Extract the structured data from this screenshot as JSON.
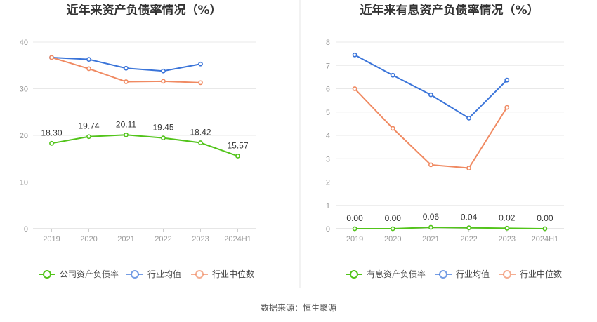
{
  "chart_data": [
    {
      "type": "line",
      "title": "近年来资产负债率情况（%）",
      "categories": [
        "2019",
        "2020",
        "2021",
        "2022",
        "2023",
        "2024H1"
      ],
      "ylim": [
        0,
        40
      ],
      "yticks": [
        "0",
        "10",
        "20",
        "30",
        "40"
      ],
      "grid": true,
      "legend_position": "bottom",
      "series": [
        {
          "name": "公司资产负债率",
          "color": "#52c41a",
          "values": [
            18.3,
            19.74,
            20.11,
            19.45,
            18.42,
            15.57
          ],
          "labels": [
            "18.30",
            "19.74",
            "20.11",
            "19.45",
            "18.42",
            "15.57"
          ]
        },
        {
          "name": "行业均值",
          "color": "#3a74d9",
          "values": [
            36.7,
            36.3,
            34.4,
            33.8,
            35.3,
            null
          ]
        },
        {
          "name": "行业中位数",
          "color": "#f08a62",
          "values": [
            36.7,
            34.3,
            31.5,
            31.6,
            31.3,
            null
          ]
        }
      ]
    },
    {
      "type": "line",
      "title": "近年来有息资产负债率情况（%）",
      "categories": [
        "2019",
        "2020",
        "2021",
        "2022",
        "2023",
        "2024H1"
      ],
      "ylim": [
        0,
        8
      ],
      "yticks": [
        "0",
        "1",
        "2",
        "3",
        "4",
        "5",
        "6",
        "7",
        "8"
      ],
      "grid": true,
      "legend_position": "bottom",
      "series": [
        {
          "name": "有息资产负债率",
          "color": "#52c41a",
          "values": [
            0.0,
            0.0,
            0.06,
            0.04,
            0.02,
            0.0
          ],
          "labels": [
            "0.00",
            "0.00",
            "0.06",
            "0.04",
            "0.02",
            "0.00"
          ]
        },
        {
          "name": "行业均值",
          "color": "#3a74d9",
          "values": [
            7.45,
            6.58,
            5.74,
            4.74,
            6.37,
            null
          ]
        },
        {
          "name": "行业中位数",
          "color": "#f08a62",
          "values": [
            6.0,
            4.3,
            2.74,
            2.6,
            5.2,
            null
          ]
        }
      ]
    }
  ],
  "footer": {
    "source": "数据来源：恒生聚源"
  }
}
